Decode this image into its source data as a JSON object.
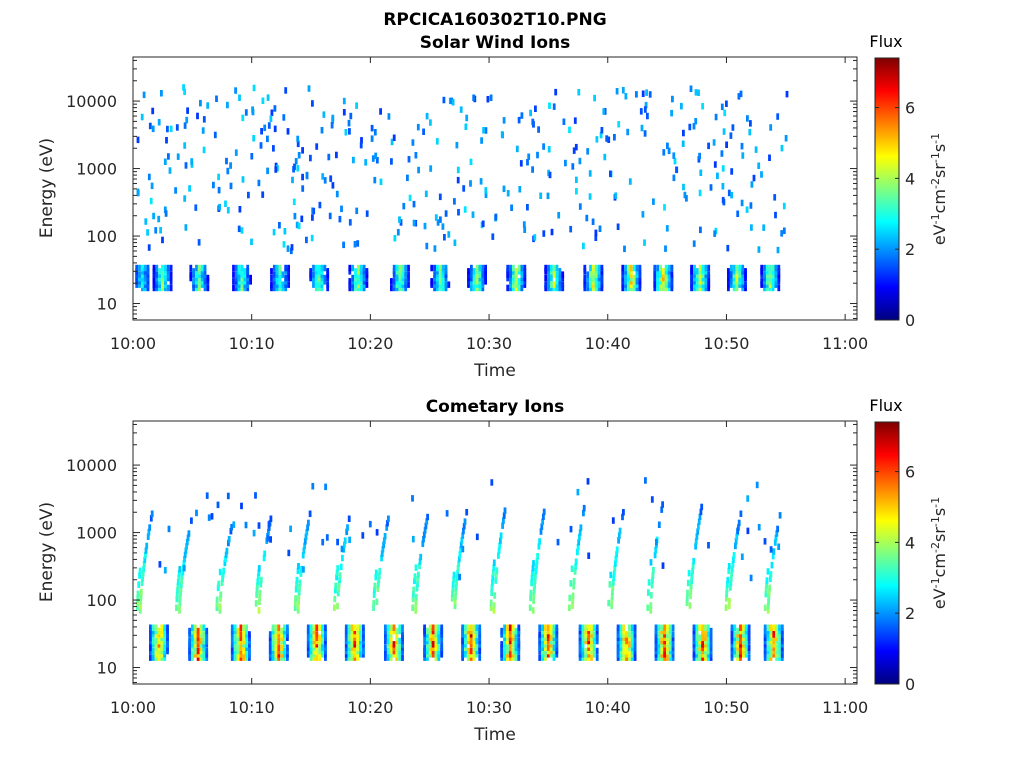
{
  "figure_title": "RPCICA160302T10.PNG",
  "time_ticks": [
    "10:00",
    "10:10",
    "10:20",
    "10:30",
    "10:40",
    "10:50",
    "11:00"
  ],
  "colormap": [
    "#00007f",
    "#0000ff",
    "#007fff",
    "#00ffff",
    "#7fff7f",
    "#ffff00",
    "#ff7f00",
    "#ff0000",
    "#7f0000"
  ],
  "chart_data": [
    {
      "type": "heatmap",
      "title": "Solar Wind Ions",
      "xlabel": "Time",
      "ylabel": "Energy (eV)",
      "xlim": [
        0,
        61
      ],
      "x_unit": "minutes after 10:00",
      "yscale": "log",
      "ylim": [
        5.7,
        45000
      ],
      "y_ticks": [
        10,
        100,
        1000,
        10000
      ],
      "y_tick_labels": [
        "10",
        "100",
        "1000",
        "10000"
      ],
      "colorbar": {
        "label_top": "Flux",
        "unit": "eV^-1 cm^-2 sr^-1 s^-1",
        "range": [
          0,
          7.4
        ],
        "ticks": [
          0,
          2,
          4,
          6
        ]
      },
      "data_end_minute": 55,
      "bursts": [
        {
          "t": 0.3,
          "band": [
            17,
            37
          ],
          "peak": 3.2
        },
        {
          "t": 2.0,
          "band": [
            17,
            37
          ],
          "peak": 4.2
        },
        {
          "t": 5.1,
          "band": [
            17,
            37
          ],
          "peak": 4.0
        },
        {
          "t": 8.7,
          "band": [
            17,
            37
          ],
          "peak": 4.0
        },
        {
          "t": 11.9,
          "band": [
            17,
            37
          ],
          "peak": 4.0
        },
        {
          "t": 15.2,
          "band": [
            17,
            37
          ],
          "peak": 4.2
        },
        {
          "t": 18.5,
          "band": [
            17,
            37
          ],
          "peak": 4.5
        },
        {
          "t": 22.0,
          "band": [
            17,
            37
          ],
          "peak": 4.3
        },
        {
          "t": 25.4,
          "band": [
            17,
            37
          ],
          "peak": 4.0
        },
        {
          "t": 28.5,
          "band": [
            17,
            37
          ],
          "peak": 4.5
        },
        {
          "t": 31.8,
          "band": [
            17,
            37
          ],
          "peak": 4.8
        },
        {
          "t": 35.0,
          "band": [
            17,
            37
          ],
          "peak": 4.6
        },
        {
          "t": 38.3,
          "band": [
            17,
            37
          ],
          "peak": 5.0
        },
        {
          "t": 41.5,
          "band": [
            17,
            37
          ],
          "peak": 5.3
        },
        {
          "t": 44.2,
          "band": [
            17,
            37
          ],
          "peak": 5.5
        },
        {
          "t": 47.3,
          "band": [
            17,
            37
          ],
          "peak": 5.0
        },
        {
          "t": 50.4,
          "band": [
            17,
            37
          ],
          "peak": 4.6
        },
        {
          "t": 53.2,
          "band": [
            17,
            37
          ],
          "peak": 4.6
        }
      ],
      "sparse_hits": {
        "count": 430,
        "emin": 60,
        "emax": 16000,
        "flux_range": [
          1.3,
          2.6
        ],
        "seed": 7
      }
    },
    {
      "type": "heatmap",
      "title": "Cometary Ions",
      "xlabel": "Time",
      "ylabel": "Energy (eV)",
      "xlim": [
        0,
        61
      ],
      "x_unit": "minutes after 10:00",
      "yscale": "log",
      "ylim": [
        5.7,
        45000
      ],
      "y_ticks": [
        10,
        100,
        1000,
        10000
      ],
      "y_tick_labels": [
        "10",
        "100",
        "1000",
        "10000"
      ],
      "colorbar": {
        "label_top": "Flux",
        "unit": "eV^-1 cm^-2 sr^-1 s^-1",
        "range": [
          0,
          7.4
        ],
        "ticks": [
          0,
          2,
          4,
          6
        ]
      },
      "data_end_minute": 55,
      "bursts": [
        {
          "t": 1.7,
          "band": [
            14,
            42
          ],
          "peak": 6.3
        },
        {
          "t": 5.0,
          "band": [
            14,
            42
          ],
          "peak": 6.8
        },
        {
          "t": 8.6,
          "band": [
            14,
            42
          ],
          "peak": 6.8
        },
        {
          "t": 11.8,
          "band": [
            14,
            42
          ],
          "peak": 6.8
        },
        {
          "t": 15.0,
          "band": [
            14,
            42
          ],
          "peak": 6.8
        },
        {
          "t": 18.2,
          "band": [
            14,
            42
          ],
          "peak": 7.0
        },
        {
          "t": 21.5,
          "band": [
            14,
            42
          ],
          "peak": 6.8
        },
        {
          "t": 24.8,
          "band": [
            14,
            42
          ],
          "peak": 6.8
        },
        {
          "t": 28.0,
          "band": [
            14,
            42
          ],
          "peak": 7.0
        },
        {
          "t": 31.3,
          "band": [
            14,
            42
          ],
          "peak": 6.8
        },
        {
          "t": 34.5,
          "band": [
            14,
            42
          ],
          "peak": 6.8
        },
        {
          "t": 37.9,
          "band": [
            14,
            42
          ],
          "peak": 6.8
        },
        {
          "t": 41.1,
          "band": [
            14,
            42
          ],
          "peak": 6.8
        },
        {
          "t": 44.3,
          "band": [
            14,
            42
          ],
          "peak": 7.0
        },
        {
          "t": 47.5,
          "band": [
            14,
            42
          ],
          "peak": 6.8
        },
        {
          "t": 50.7,
          "band": [
            14,
            42
          ],
          "peak": 6.8
        },
        {
          "t": 53.5,
          "band": [
            14,
            42
          ],
          "peak": 6.8
        }
      ],
      "arcs": [
        {
          "t_start": 0.5,
          "e_low": 70,
          "e_high": 1900
        },
        {
          "t_start": 3.8,
          "e_low": 70,
          "e_high": 1500
        },
        {
          "t_start": 7.2,
          "e_low": 70,
          "e_high": 1200
        },
        {
          "t_start": 10.5,
          "e_low": 70,
          "e_high": 1600
        },
        {
          "t_start": 13.8,
          "e_low": 70,
          "e_high": 1900
        },
        {
          "t_start": 17.1,
          "e_low": 70,
          "e_high": 1600
        },
        {
          "t_start": 20.4,
          "e_low": 70,
          "e_high": 1600
        },
        {
          "t_start": 23.7,
          "e_low": 70,
          "e_high": 1700
        },
        {
          "t_start": 27.0,
          "e_low": 70,
          "e_high": 2000
        },
        {
          "t_start": 30.3,
          "e_low": 70,
          "e_high": 2500
        },
        {
          "t_start": 33.6,
          "e_low": 70,
          "e_high": 2400
        },
        {
          "t_start": 36.9,
          "e_low": 70,
          "e_high": 2300
        },
        {
          "t_start": 40.2,
          "e_low": 70,
          "e_high": 2000
        },
        {
          "t_start": 43.5,
          "e_low": 70,
          "e_high": 2600
        },
        {
          "t_start": 46.8,
          "e_low": 70,
          "e_high": 2400
        },
        {
          "t_start": 50.1,
          "e_low": 70,
          "e_high": 1900
        },
        {
          "t_start": 53.4,
          "e_low": 70,
          "e_high": 1800
        }
      ],
      "sparse_hits": {
        "count": 60,
        "emin": 200,
        "emax": 6000,
        "flux_range": [
          1.3,
          2.2
        ],
        "seed": 11
      }
    }
  ]
}
